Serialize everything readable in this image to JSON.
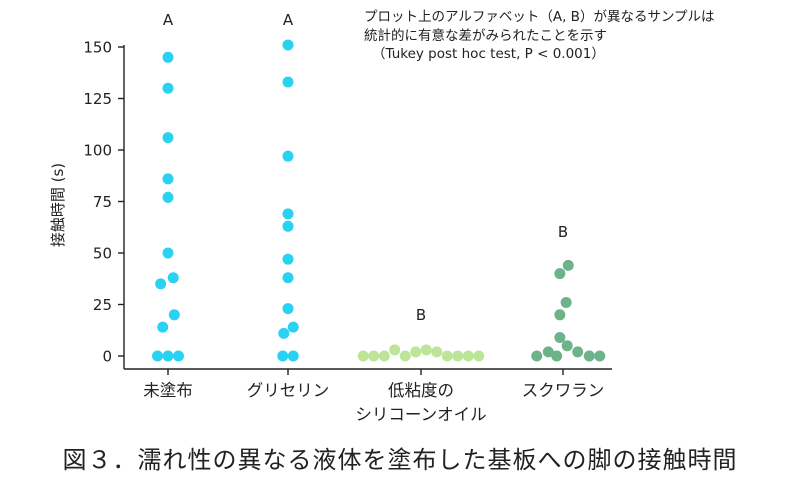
{
  "chart_data": {
    "type": "scatter",
    "ylabel": "接触時間 (s)",
    "ylim": [
      0,
      155
    ],
    "yticks": [
      0,
      25,
      50,
      75,
      100,
      125,
      150
    ],
    "categories": [
      "未塗布",
      "グリセリン",
      "低粘度のシリコーンオイル",
      "スクワラン"
    ],
    "category_label_lines": [
      [
        "未塗布"
      ],
      [
        "グリセリン"
      ],
      [
        "低粘度の",
        "シリコーンオイル"
      ],
      [
        "スクワラン"
      ]
    ],
    "series": [
      {
        "category": "未塗布",
        "color": "#29d2f2",
        "letter": "A",
        "points": [
          {
            "offset": 0,
            "y": 145
          },
          {
            "offset": 0,
            "y": 130
          },
          {
            "offset": 0,
            "y": 106
          },
          {
            "offset": 0,
            "y": 86
          },
          {
            "offset": 0,
            "y": 77
          },
          {
            "offset": 0,
            "y": 50
          },
          {
            "offset": 0.5,
            "y": 38
          },
          {
            "offset": -0.7,
            "y": 35
          },
          {
            "offset": 0.6,
            "y": 20
          },
          {
            "offset": -0.5,
            "y": 14
          },
          {
            "offset": -1,
            "y": 0
          },
          {
            "offset": 0,
            "y": 0
          },
          {
            "offset": 1,
            "y": 0
          }
        ]
      },
      {
        "category": "グリセリン",
        "color": "#29d2f2",
        "letter": "A",
        "points": [
          {
            "offset": 0,
            "y": 151
          },
          {
            "offset": 0,
            "y": 133
          },
          {
            "offset": 0,
            "y": 97
          },
          {
            "offset": 0,
            "y": 69
          },
          {
            "offset": 0,
            "y": 63
          },
          {
            "offset": 0,
            "y": 47
          },
          {
            "offset": 0,
            "y": 38
          },
          {
            "offset": 0,
            "y": 23
          },
          {
            "offset": 0.5,
            "y": 14
          },
          {
            "offset": -0.4,
            "y": 11
          },
          {
            "offset": -0.5,
            "y": 0
          },
          {
            "offset": 0.5,
            "y": 0
          }
        ]
      },
      {
        "category": "低粘度のシリコーンオイル",
        "color": "#bde59a",
        "letter": "B",
        "points": [
          {
            "offset": -5.5,
            "y": 0
          },
          {
            "offset": -4.5,
            "y": 0
          },
          {
            "offset": -3.5,
            "y": 0
          },
          {
            "offset": -2.5,
            "y": 3
          },
          {
            "offset": -1.5,
            "y": 0
          },
          {
            "offset": -0.5,
            "y": 2
          },
          {
            "offset": 0.5,
            "y": 3
          },
          {
            "offset": 1.5,
            "y": 2
          },
          {
            "offset": 2.5,
            "y": 0
          },
          {
            "offset": 3.5,
            "y": 0
          },
          {
            "offset": 4.5,
            "y": 0
          },
          {
            "offset": 5.5,
            "y": 0
          }
        ]
      },
      {
        "category": "スクワラン",
        "color": "#6db389",
        "letter": "B",
        "points": [
          {
            "offset": -0.3,
            "y": 40
          },
          {
            "offset": 0.5,
            "y": 44
          },
          {
            "offset": 0.3,
            "y": 26
          },
          {
            "offset": -0.3,
            "y": 20
          },
          {
            "offset": -0.3,
            "y": 9
          },
          {
            "offset": 0.4,
            "y": 5
          },
          {
            "offset": -1.4,
            "y": 2
          },
          {
            "offset": 1.4,
            "y": 2
          },
          {
            "offset": -2.5,
            "y": 0
          },
          {
            "offset": -0.6,
            "y": 0
          },
          {
            "offset": 2.5,
            "y": 0
          },
          {
            "offset": 3.5,
            "y": 0
          }
        ]
      }
    ],
    "annotation_lines": [
      "プロット上のアルファベット（A, B）が異なるサンプルは",
      "統計的に有意な差がみられたことを示す",
      "（Tukey post hoc test, P < 0.001）"
    ]
  },
  "caption": "図３．濡れ性の異なる液体を塗布した基板への脚の接触時間"
}
